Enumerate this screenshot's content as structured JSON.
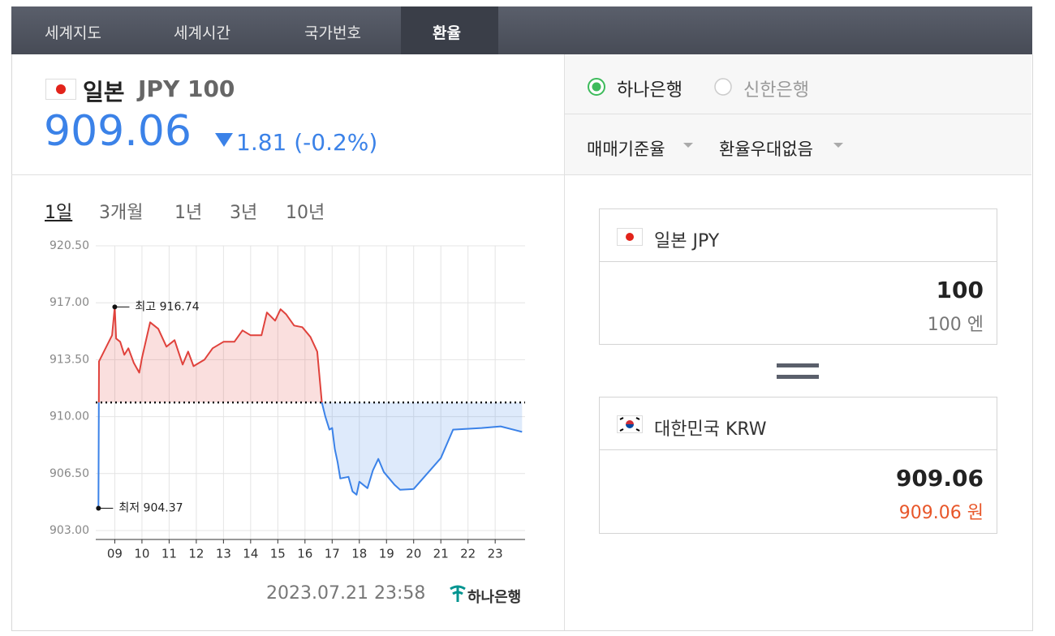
{
  "tabs": [
    "세계지도",
    "세계시간",
    "국가번호",
    "환율"
  ],
  "header": {
    "country": "일본",
    "currency": "JPY 100",
    "rate": "909.06",
    "change": "1.81 (-0.2%)"
  },
  "periods": [
    "1일",
    "3개월",
    "1년",
    "3년",
    "10년"
  ],
  "chart": {
    "type": "line",
    "x": [
      8.4,
      8.42,
      8.9,
      9.0,
      9.05,
      9.2,
      9.35,
      9.5,
      9.7,
      9.9,
      10.0,
      10.3,
      10.6,
      10.9,
      11.2,
      11.5,
      11.7,
      11.9,
      12.3,
      12.6,
      13.0,
      13.4,
      13.7,
      14.0,
      14.4,
      14.6,
      14.9,
      15.1,
      15.3,
      15.6,
      15.9,
      16.2,
      16.45,
      16.62,
      16.75,
      16.9,
      17.0,
      17.1,
      17.2,
      17.3,
      17.6,
      17.75,
      17.9,
      18.0,
      18.3,
      18.5,
      18.7,
      18.9,
      19.3,
      19.5,
      20.0,
      21.0,
      21.45,
      22.5,
      23.2,
      23.99
    ],
    "values": [
      904.37,
      913.4,
      915.0,
      916.74,
      914.8,
      914.6,
      913.8,
      914.2,
      913.3,
      912.7,
      913.6,
      915.8,
      915.4,
      914.3,
      914.7,
      913.2,
      914.0,
      913.1,
      913.5,
      914.2,
      914.6,
      914.6,
      915.3,
      915.0,
      915.0,
      916.4,
      915.9,
      916.6,
      916.3,
      915.6,
      915.5,
      914.9,
      914.0,
      910.87,
      910.0,
      909.2,
      909.3,
      908.0,
      907.2,
      906.2,
      906.3,
      905.4,
      905.2,
      906.0,
      905.6,
      906.7,
      907.4,
      906.6,
      905.8,
      905.5,
      905.55,
      907.45,
      909.2,
      909.3,
      909.4,
      909.06
    ],
    "xlim": [
      8.3,
      24.1
    ],
    "ylim": [
      902.45,
      920.5
    ],
    "xticks": [
      {
        "value": 9,
        "label": "09"
      },
      10,
      11,
      12,
      13,
      14,
      15,
      16,
      17,
      18,
      19,
      20,
      21,
      22,
      23
    ],
    "yticks": [
      {
        "value": 903,
        "label": "903.00"
      },
      {
        "value": 906.5,
        "label": "906.50"
      },
      {
        "value": 910,
        "label": "910.00"
      },
      {
        "value": 913.5,
        "label": "913.50"
      },
      {
        "value": 917,
        "label": "917.00"
      },
      {
        "value": 920.5,
        "label": "920.50"
      }
    ],
    "reference_line": 910.87,
    "up_color": "#e0423c",
    "down_color": "#3b82e8",
    "grid": true,
    "annotations": [
      {
        "label": "최고 916.74",
        "x": 9.0,
        "value": 916.74
      },
      {
        "label": "최저 904.37",
        "x": 8.4,
        "value": 904.37
      }
    ]
  },
  "footer": {
    "timestamp": "2023.07.21 23:58",
    "bank": "하나은행"
  },
  "bank_options": [
    "하나은행",
    "신한은행"
  ],
  "dropdowns": [
    "매매기준율",
    "환율우대없음"
  ],
  "converter": {
    "from": {
      "label": "일본 JPY",
      "amount": "100",
      "amount_text": "100 엔"
    },
    "to": {
      "label": "대한민국 KRW",
      "amount": "909.06",
      "amount_text": "909.06 원"
    }
  }
}
